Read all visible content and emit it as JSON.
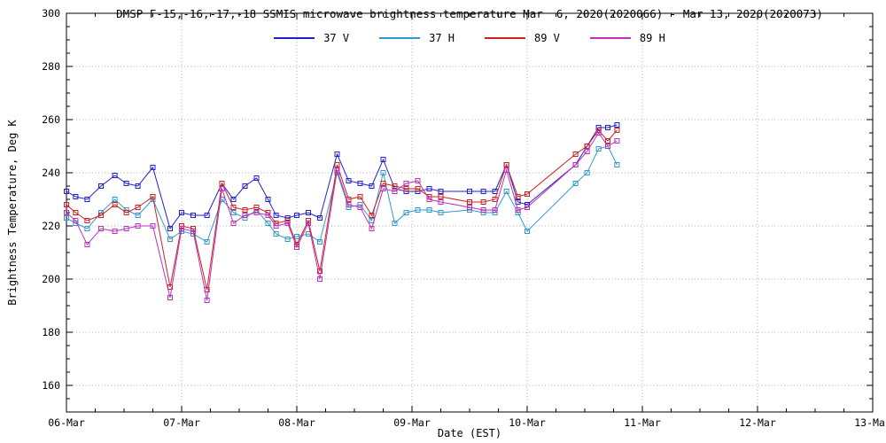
{
  "chart_data": {
    "type": "line",
    "title": "DMSP F-15,-16,-17,-18 SSMIS microwave brightness temperature Mar  6, 2020(2020066) - Mar 13, 2020(2020073)",
    "xlabel": "Date (EST)",
    "ylabel": "Brightness Temperature, Deg K",
    "ylim": [
      150,
      300
    ],
    "yticks": [
      160,
      180,
      200,
      220,
      240,
      260,
      280,
      300
    ],
    "x_range_days": 7,
    "x_tick_labels": [
      "06-Mar",
      "07-Mar",
      "08-Mar",
      "09-Mar",
      "10-Mar",
      "11-Mar",
      "12-Mar",
      "13-Mar"
    ],
    "grid": "dotted",
    "marker": "open-square",
    "legend_position": "top-center",
    "x_days": [
      0.0,
      0.08,
      0.18,
      0.3,
      0.42,
      0.52,
      0.62,
      0.75,
      0.9,
      1.0,
      1.1,
      1.22,
      1.35,
      1.45,
      1.55,
      1.65,
      1.75,
      1.82,
      1.92,
      2.0,
      2.1,
      2.2,
      2.35,
      2.45,
      2.55,
      2.65,
      2.75,
      2.85,
      2.95,
      3.05,
      3.15,
      3.25,
      3.5,
      3.62,
      3.72,
      3.82,
      3.92,
      4.0,
      4.42,
      4.52,
      4.62,
      4.7,
      4.78
    ],
    "series": [
      {
        "name": "37 V",
        "color": "#2222cc",
        "values": [
          233,
          231,
          230,
          235,
          239,
          236,
          235,
          242,
          219,
          225,
          224,
          224,
          236,
          230,
          235,
          238,
          230,
          224,
          223,
          224,
          225,
          223,
          247,
          237,
          236,
          235,
          245,
          234,
          233,
          233,
          234,
          233,
          233,
          233,
          233,
          243,
          229,
          228,
          243,
          250,
          257,
          257,
          258
        ]
      },
      {
        "name": "37 H",
        "color": "#3399cc",
        "values": [
          223,
          221,
          219,
          225,
          230,
          226,
          224,
          230,
          215,
          218,
          217,
          214,
          230,
          225,
          223,
          226,
          221,
          217,
          215,
          216,
          217,
          214,
          240,
          227,
          228,
          222,
          240,
          221,
          225,
          226,
          226,
          225,
          226,
          225,
          225,
          233,
          225,
          218,
          236,
          240,
          249,
          250,
          243
        ]
      },
      {
        "name": "89 V",
        "color": "#cc2222",
        "values": [
          228,
          225,
          222,
          224,
          228,
          225,
          227,
          231,
          197,
          220,
          219,
          196,
          236,
          227,
          226,
          227,
          225,
          221,
          222,
          213,
          222,
          203,
          243,
          230,
          231,
          224,
          236,
          235,
          234,
          234,
          231,
          231,
          229,
          229,
          230,
          243,
          231,
          232,
          247,
          250,
          256,
          252,
          256
        ]
      },
      {
        "name": "89 H",
        "color": "#bb33bb",
        "values": [
          225,
          222,
          213,
          219,
          218,
          219,
          220,
          220,
          193,
          219,
          218,
          192,
          234,
          221,
          224,
          225,
          224,
          220,
          221,
          212,
          221,
          200,
          241,
          228,
          227,
          219,
          234,
          233,
          236,
          237,
          230,
          229,
          227,
          226,
          226,
          241,
          226,
          227,
          243,
          248,
          255,
          250,
          252
        ]
      }
    ]
  }
}
